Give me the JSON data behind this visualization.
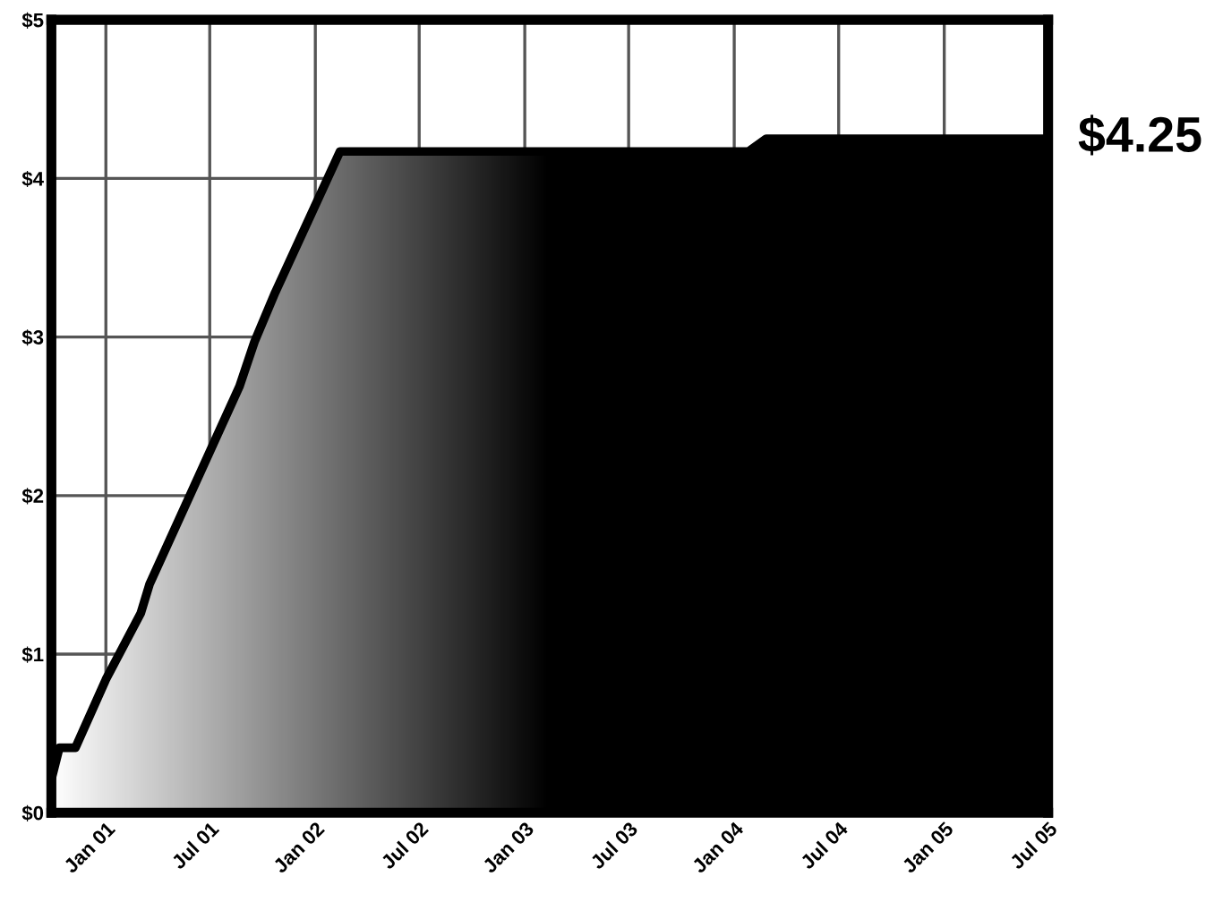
{
  "chart_data": {
    "type": "area",
    "x": [
      "2000-09-28",
      "2000-10-12",
      "2000-11-09",
      "2001-01-01",
      "2001-03-03",
      "2001-03-18",
      "2001-08-22",
      "2001-09-17",
      "2001-10-23",
      "2002-02-13",
      "2004-01-26",
      "2004-02-26",
      "2005-07-01"
    ],
    "series": [
      {
        "color": "#000000",
        "values": [
          0.21,
          0.41,
          0.41,
          0.84,
          1.26,
          1.44,
          2.69,
          2.97,
          3.28,
          4.17,
          4.17,
          4.25,
          4.25
        ]
      }
    ],
    "xlim": [
      "2000-09-28",
      "2005-07-01"
    ],
    "xticks": [
      {
        "value": "2001-01-01",
        "label": "Jan 01"
      },
      {
        "value": "2001-07-01",
        "label": "Jul 01"
      },
      {
        "value": "2002-01-01",
        "label": "Jan 02"
      },
      {
        "value": "2002-07-01",
        "label": "Jul 02"
      },
      {
        "value": "2003-01-01",
        "label": "Jan 03"
      },
      {
        "value": "2003-07-01",
        "label": "Jul 03"
      },
      {
        "value": "2004-01-01",
        "label": "Jan 04"
      },
      {
        "value": "2004-07-01",
        "label": "Jul 04"
      },
      {
        "value": "2005-01-01",
        "label": "Jan 05"
      },
      {
        "value": "2005-07-01",
        "label": "Jul 05"
      }
    ],
    "ylim": [
      0,
      5
    ],
    "yticks": [
      {
        "value": 0,
        "label": "$0"
      },
      {
        "value": 1,
        "label": "$1"
      },
      {
        "value": 2,
        "label": "$2"
      },
      {
        "value": 3,
        "label": "$3"
      },
      {
        "value": 4,
        "label": "$4"
      },
      {
        "value": 5,
        "label": "$5"
      }
    ],
    "grid": true,
    "annotations": [
      {
        "text": "$4.25",
        "x": "2005-07-01",
        "y": 4.25
      }
    ]
  }
}
